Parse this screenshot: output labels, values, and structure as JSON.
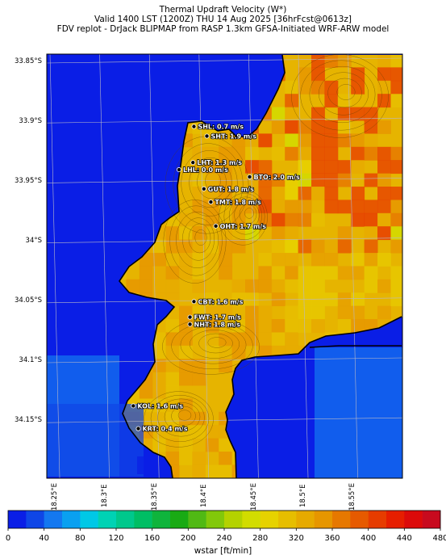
{
  "title": {
    "line1": "Thermal Updraft Velocity (W*)",
    "line2": "Valid 1400 LST (1200Z) THU 14 Aug 2025 [36hrFcst@0613z]",
    "line3": "FDV replot - DrJack BLIPMAP from RASP 1.3km GFSA-Initiated WRF-ARW model"
  },
  "y_axis_ticks": [
    "33.85°S",
    "33.9°S",
    "33.95°S",
    "34°S",
    "34.05°S",
    "34.1°S",
    "34.15°S"
  ],
  "x_axis_ticks": [
    "18.25°E",
    "18.3°E",
    "18.35°E",
    "18.4°E",
    "18.45°E",
    "18.5°E",
    "18.55°E"
  ],
  "stations": [
    {
      "label": "SHL: 0.7 m/s",
      "lat": -33.905,
      "lon": 18.39
    },
    {
      "label": "SHT: 1.9 m/s",
      "lat": -33.913,
      "lon": 18.403
    },
    {
      "label": "LHT: 1.3 m/s",
      "lat": -33.935,
      "lon": 18.389
    },
    {
      "label": "LHL: 0.0 m/s",
      "lat": -33.941,
      "lon": 18.375
    },
    {
      "label": "BTO: 2.0 m/s",
      "lat": -33.947,
      "lon": 18.446
    },
    {
      "label": "GUT: 1.8 m/s",
      "lat": -33.957,
      "lon": 18.4
    },
    {
      "label": "TMT: 1.8 m/s",
      "lat": -33.968,
      "lon": 18.407
    },
    {
      "label": "OHT: 1.7 m/s",
      "lat": -33.988,
      "lon": 18.412
    },
    {
      "label": "CBT: 1.6 m/s",
      "lat": -34.051,
      "lon": 18.39
    },
    {
      "label": "FWT: 1.7 m/s",
      "lat": -34.064,
      "lon": 18.386
    },
    {
      "label": "NHT: 1.8 m/s",
      "lat": -34.07,
      "lon": 18.386
    },
    {
      "label": "KOL: 1.6 m/s",
      "lat": -34.138,
      "lon": 18.329
    },
    {
      "label": "KRT: 0.4 m/s",
      "lat": -34.157,
      "lon": 18.334
    }
  ],
  "colorbar": {
    "label": "wstar [ft/min]",
    "ticks": [
      "0",
      "40",
      "80",
      "120",
      "160",
      "200",
      "240",
      "280",
      "320",
      "360",
      "400",
      "440",
      "480"
    ],
    "colors": [
      "#0a1ee6",
      "#0f46e6",
      "#1478f0",
      "#0aa0f0",
      "#00c8e6",
      "#00d2b4",
      "#00c88c",
      "#00be64",
      "#0fb43c",
      "#19aa14",
      "#50b914",
      "#82c80a",
      "#b4d200",
      "#d2dc00",
      "#e6d200",
      "#e6be00",
      "#e6aa00",
      "#e69600",
      "#e67800",
      "#e65a00",
      "#e63c00",
      "#e61e00",
      "#dc0a0a",
      "#c80a1e"
    ]
  }
}
